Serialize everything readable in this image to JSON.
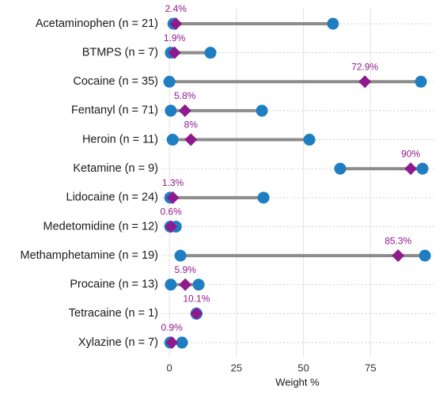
{
  "chart_data": {
    "type": "dumbbell",
    "x_label": "Weight %",
    "categories": [
      "Acetaminophen (n = 21)",
      "BTMPS (n = 7)",
      "Cocaine (n = 35)",
      "Fentanyl (n = 71)",
      "Heroin (n = 11)",
      "Ketamine (n = 9)",
      "Lidocaine (n = 24)",
      "Medetomidine (n = 12)",
      "Methamphetamine (n = 19)",
      "Procaine (n = 13)",
      "Tetracaine (n = 1)",
      "Xylazine (n = 7)"
    ],
    "ranges": {
      "color": "#1f7ec2",
      "line_color": "#8c8c8c",
      "low": [
        1.5,
        0.5,
        0,
        0.5,
        1.2,
        63.7,
        0.3,
        0.3,
        4.1,
        0.5,
        10.1,
        0.3
      ],
      "high": [
        61,
        15.3,
        93.8,
        34.5,
        52.2,
        94.4,
        35.1,
        2.4,
        95.3,
        10.9,
        10.1,
        4.7
      ]
    },
    "medians": {
      "color": "#8e1a8e",
      "values": [
        2.4,
        1.9,
        72.9,
        5.8,
        8,
        90,
        1.3,
        0.6,
        85.3,
        5.9,
        10.1,
        0.9
      ],
      "value_labels": [
        "2.4%",
        "1.9%",
        "72.9%",
        "5.8%",
        "8%",
        "90%",
        "1.3%",
        "0.6%",
        "85.3%",
        "5.9%",
        "10.1%",
        "0.9%"
      ]
    },
    "xlim": [
      -2.7,
      98.5
    ],
    "xticks": [
      0,
      25,
      50,
      75
    ],
    "grid": true
  }
}
